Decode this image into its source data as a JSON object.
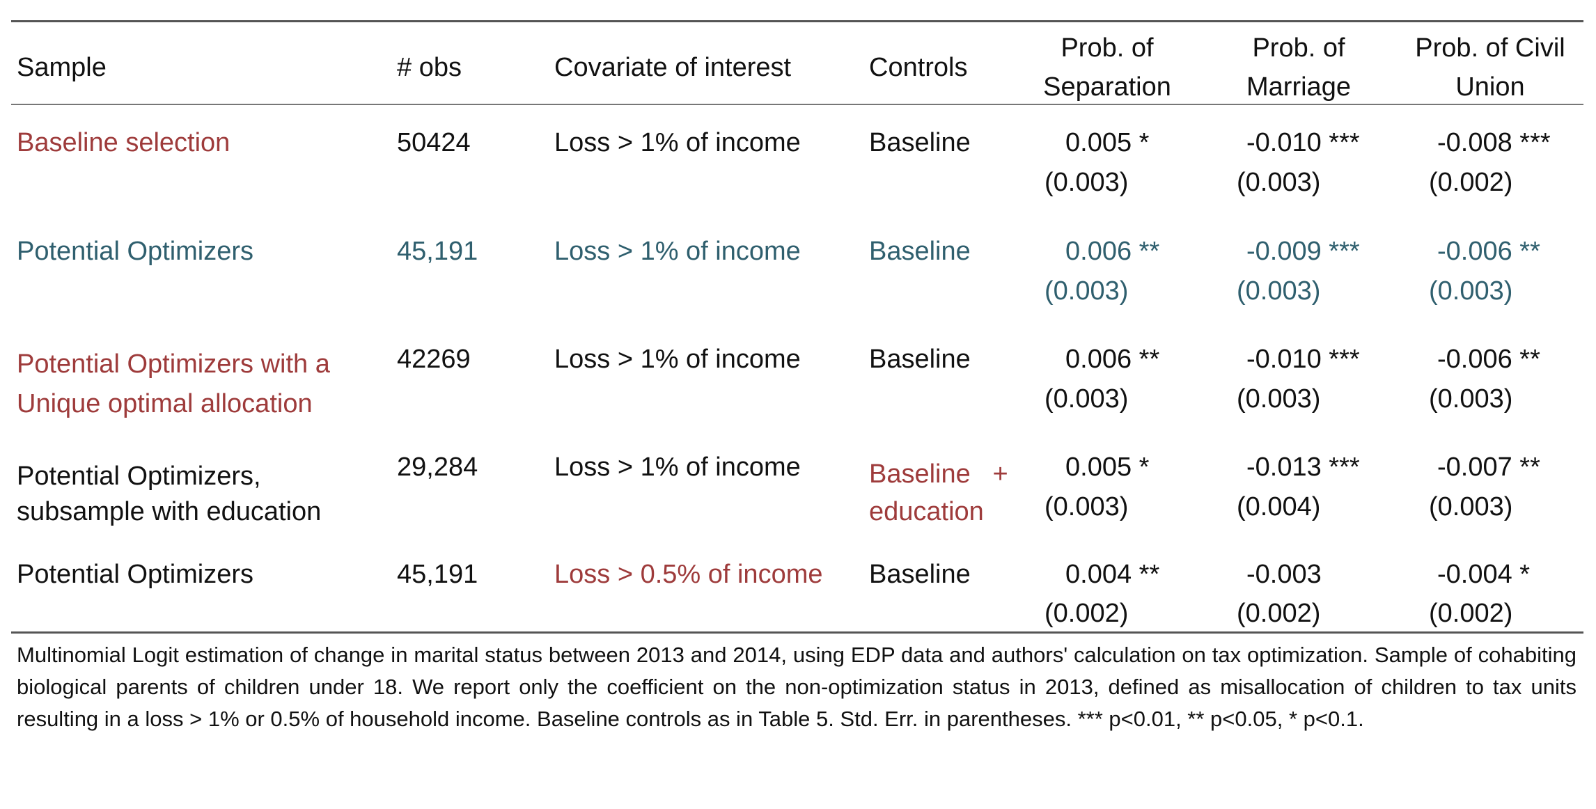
{
  "colors": {
    "red": "#9e3b3b",
    "teal": "#2f5f6e",
    "black": "#111111"
  },
  "headers": {
    "sample": "Sample",
    "obs": "# obs",
    "covariate": "Covariate of interest",
    "controls": "Controls",
    "sep_line1": "Prob. of",
    "sep_line2": "Separation",
    "mar_line1": "Prob. of",
    "mar_line2": "Marriage",
    "civ_line1": "Prob. of Civil",
    "civ_line2": "Union"
  },
  "rows": [
    {
      "color": "red",
      "color_cols": [
        "sample"
      ],
      "sample": [
        "Baseline selection"
      ],
      "obs": "50424",
      "covariate": "Loss > 1% of income",
      "controls": [
        "Baseline"
      ],
      "sep": {
        "coef": "0.005 *",
        "se": "(0.003)"
      },
      "mar": {
        "coef": "-0.010 ***",
        "se": "(0.003)"
      },
      "civ": {
        "coef": "-0.008 ***",
        "se": "(0.002)"
      }
    },
    {
      "color": "teal",
      "color_cols": [
        "sample",
        "obs",
        "covariate",
        "controls",
        "sep",
        "mar",
        "civ"
      ],
      "sample": [
        "Potential Optimizers"
      ],
      "obs": "45,191",
      "covariate": "Loss > 1% of income",
      "controls": [
        "Baseline"
      ],
      "sep": {
        "coef": "0.006 **",
        "se": "(0.003)"
      },
      "mar": {
        "coef": "-0.009 ***",
        "se": "(0.003)"
      },
      "civ": {
        "coef": "-0.006 **",
        "se": "(0.003)"
      }
    },
    {
      "color": "red",
      "color_cols": [
        "sample"
      ],
      "sample": [
        "Potential Optimizers with a",
        "Unique optimal allocation"
      ],
      "obs": "42269",
      "covariate": "Loss > 1% of income",
      "controls": [
        "Baseline"
      ],
      "sep": {
        "coef": "0.006 **",
        "se": "(0.003)"
      },
      "mar": {
        "coef": "-0.010 ***",
        "se": "(0.003)"
      },
      "civ": {
        "coef": "-0.006 **",
        "se": "(0.003)"
      }
    },
    {
      "color": "red",
      "color_cols": [
        "controls"
      ],
      "sample": [
        "Potential Optimizers,",
        "subsample with education"
      ],
      "obs": "29,284",
      "covariate": "Loss > 1% of income",
      "controls": [
        "Baseline   +",
        "education"
      ],
      "sep": {
        "coef": "0.005 *",
        "se": "(0.003)"
      },
      "mar": {
        "coef": "-0.013 ***",
        "se": "(0.004)"
      },
      "civ": {
        "coef": "-0.007 **",
        "se": "(0.003)"
      }
    },
    {
      "color": "red",
      "color_cols": [
        "covariate"
      ],
      "sample": [
        "Potential Optimizers"
      ],
      "obs": "45,191",
      "covariate": "Loss > 0.5% of income",
      "controls": [
        "Baseline"
      ],
      "sep": {
        "coef": "0.004 **",
        "se": "(0.002)"
      },
      "mar": {
        "coef": "-0.003",
        "se": "(0.002)"
      },
      "civ": {
        "coef": "-0.004 *",
        "se": "(0.002)"
      }
    }
  ],
  "note": "Multinomial Logit estimation of change in marital status between 2013 and 2014, using EDP data and authors' calculation on tax optimization. Sample of cohabiting biological parents of children under 18. We report only the coefficient on the non-optimization status in 2013, defined as misallocation of children to tax units resulting in a loss > 1% or 0.5% of household income. Baseline controls as in Table 5. Std. Err. in parentheses. *** p<0.01, ** p<0.05, * p<0.1."
}
